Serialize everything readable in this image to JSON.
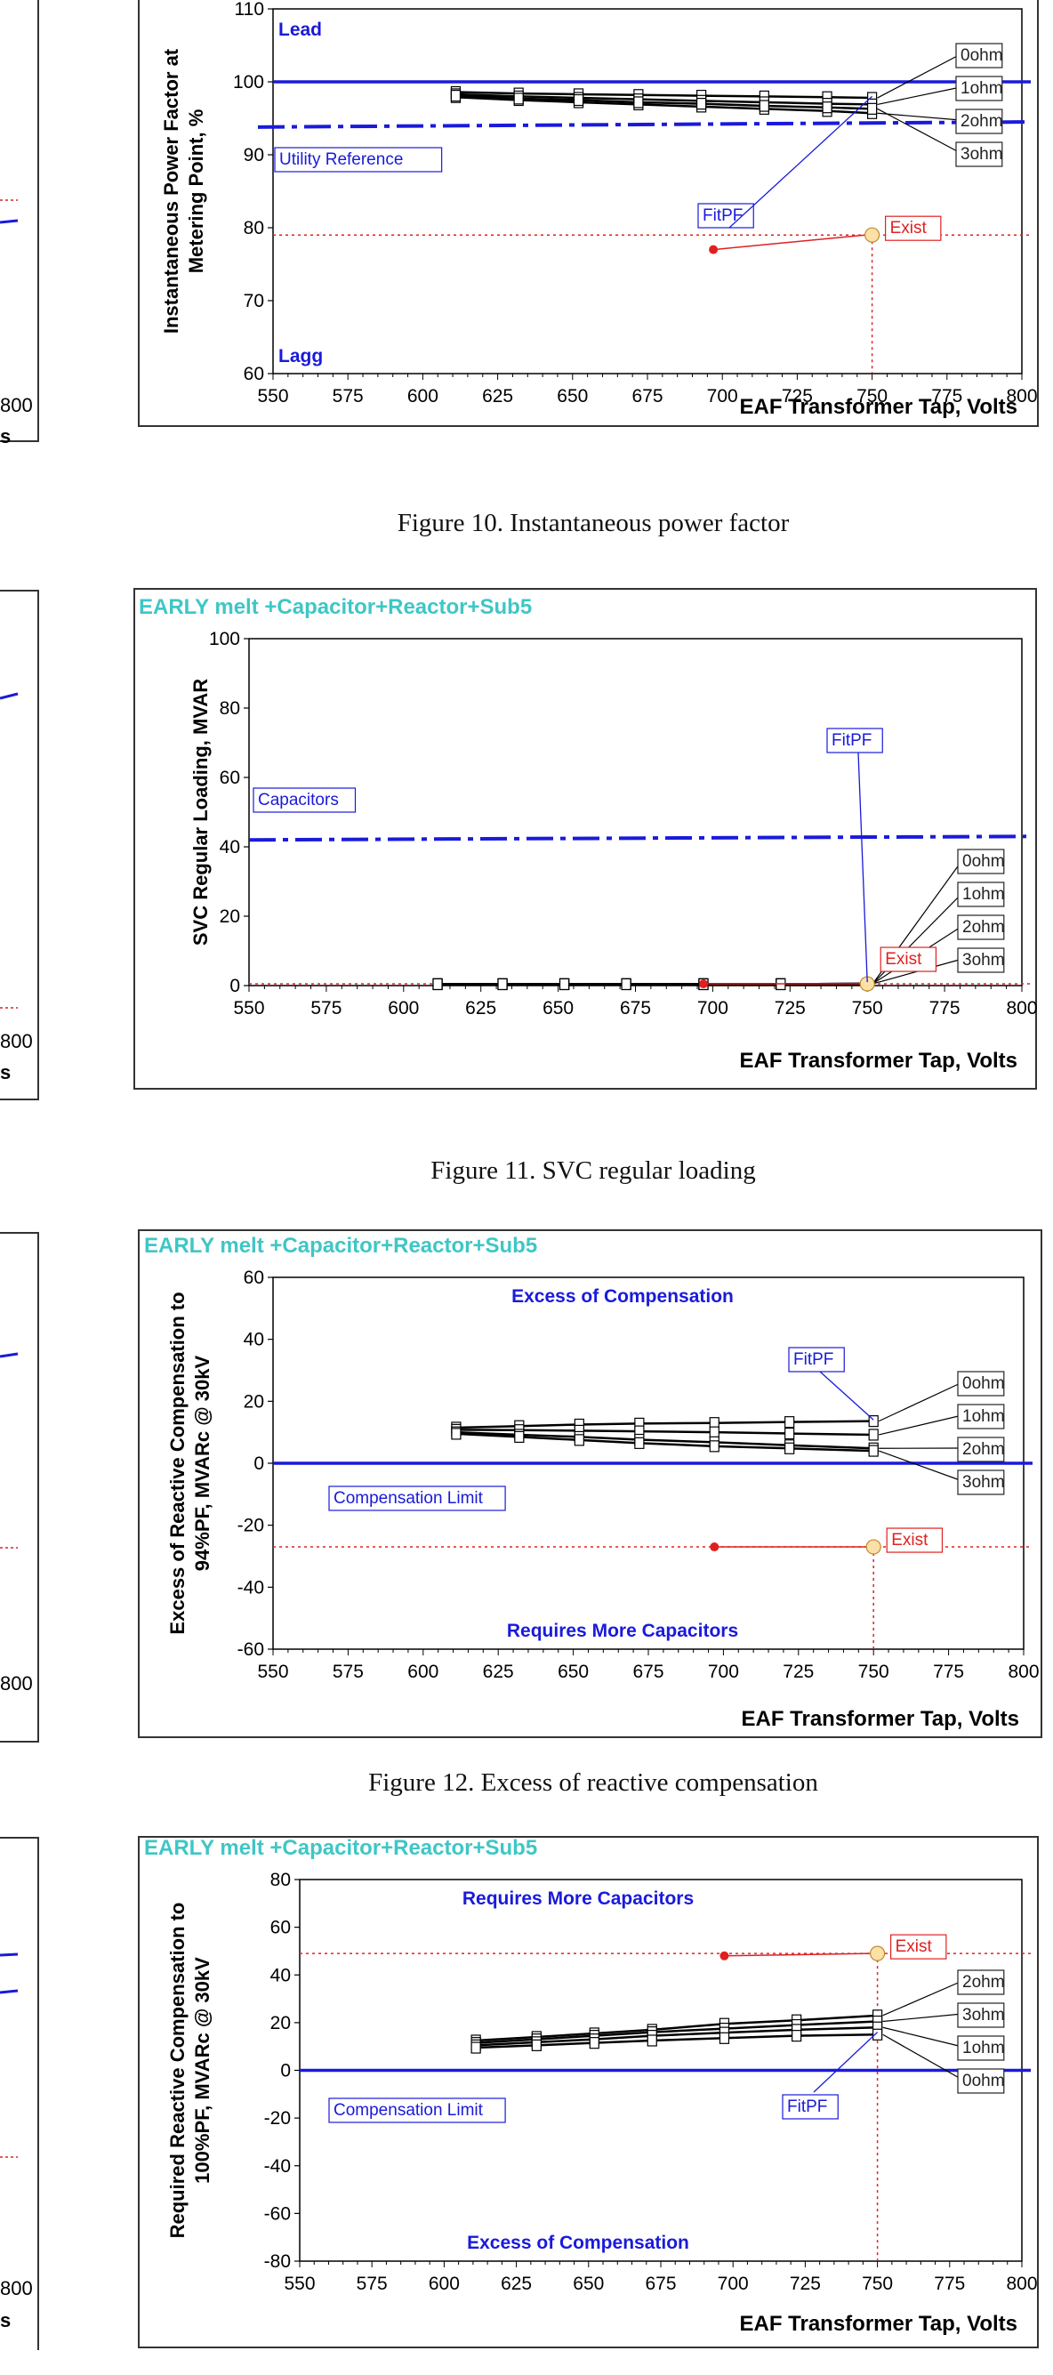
{
  "captions": [
    "Figure 10.  Instantaneous power factor",
    "Figure 11.  SVC regular loading",
    "Figure 12.  Excess of reactive compensation"
  ],
  "partial_left_labels": [
    "800",
    "s",
    "800",
    "s",
    "800",
    "800",
    "s"
  ],
  "colors": {
    "line": "#000000",
    "blue": "#1a1adb",
    "red": "#e02020",
    "teal": "#3fc6c6",
    "exist_fill": "#fbe1a8"
  },
  "chart_data": [
    {
      "type": "line",
      "title": "",
      "xlabel": "EAF Transformer Tap, Volts",
      "ylabel": [
        "Instantaneous Power Factor at",
        "Metering Point, %"
      ],
      "xlim": [
        550,
        800
      ],
      "ylim": [
        60,
        110
      ],
      "xticks": [
        550,
        575,
        600,
        625,
        650,
        675,
        700,
        725,
        750,
        775,
        800
      ],
      "yticks": [
        60,
        70,
        80,
        90,
        100,
        110
      ],
      "x": [
        611,
        632,
        652,
        672,
        693,
        714,
        735,
        750
      ],
      "series": [
        {
          "name": "0ohm",
          "values": [
            98.6,
            98.4,
            98.3,
            98.2,
            98.1,
            98.0,
            97.9,
            97.8
          ]
        },
        {
          "name": "1ohm",
          "values": [
            98.3,
            98.0,
            97.8,
            97.6,
            97.4,
            97.2,
            97.0,
            96.9
          ]
        },
        {
          "name": "2ohm",
          "values": [
            97.9,
            97.5,
            97.2,
            96.9,
            96.6,
            96.3,
            96.0,
            95.7
          ]
        },
        {
          "name": "3ohm",
          "values": [
            98.1,
            97.7,
            97.5,
            97.2,
            97.0,
            96.7,
            96.5,
            96.3
          ]
        }
      ],
      "ref_line": {
        "label": "Utility Reference",
        "value": 94,
        "y_left": 93.8,
        "y_right": 94.5
      },
      "limit_line": 100,
      "exist_line": 79,
      "exist_point": {
        "x": 750,
        "y": 79,
        "label": "Exist"
      },
      "red_point": {
        "x": 697,
        "y": 77
      },
      "fit_label": "FitPF",
      "annotations": {
        "top": "Lead",
        "bottom": "Lagg"
      }
    },
    {
      "type": "line",
      "title": "EARLY melt +Capacitor+Reactor+Sub5",
      "xlabel": "EAF Transformer Tap, Volts",
      "ylabel": [
        "SVC Regular Loading, MVAR"
      ],
      "xlim": [
        550,
        800
      ],
      "ylim": [
        0,
        100
      ],
      "xticks": [
        550,
        575,
        600,
        625,
        650,
        675,
        700,
        725,
        750,
        775,
        800
      ],
      "yticks": [
        0,
        20,
        40,
        60,
        80,
        100
      ],
      "x": [
        611,
        632,
        652,
        672,
        697,
        722,
        750
      ],
      "series": [
        {
          "name": "0ohm",
          "values": [
            0.4,
            0.4,
            0.4,
            0.4,
            0.4,
            0.4,
            0.5
          ]
        },
        {
          "name": "1ohm",
          "values": [
            0.4,
            0.4,
            0.4,
            0.4,
            0.4,
            0.4,
            0.5
          ]
        },
        {
          "name": "2ohm",
          "values": [
            0.4,
            0.4,
            0.4,
            0.4,
            0.4,
            0.4,
            0.5
          ]
        },
        {
          "name": "3ohm",
          "values": [
            0.4,
            0.4,
            0.4,
            0.4,
            0.4,
            0.4,
            0.5
          ]
        }
      ],
      "ref_line": {
        "label": "Capacitors",
        "value": 42,
        "y_left": 42,
        "y_right": 43
      },
      "exist_line": 0.5,
      "exist_point": {
        "x": 750,
        "y": 0.5,
        "label": "Exist"
      },
      "red_point": {
        "x": 697,
        "y": 0.5
      },
      "fit_label": "FitPF"
    },
    {
      "type": "line",
      "title": "EARLY melt +Capacitor+Reactor+Sub5",
      "xlabel": "EAF Transformer Tap, Volts",
      "ylabel": [
        "Excess of Reactive Compensation to",
        "94%PF, MVARc @ 30kV"
      ],
      "xlim": [
        550,
        800
      ],
      "ylim": [
        -60,
        60
      ],
      "xticks": [
        550,
        575,
        600,
        625,
        650,
        675,
        700,
        725,
        750,
        775,
        800
      ],
      "yticks": [
        -60,
        -40,
        -20,
        0,
        20,
        40,
        60
      ],
      "x": [
        611,
        632,
        652,
        672,
        697,
        722,
        750
      ],
      "series": [
        {
          "name": "0ohm",
          "values": [
            11.5,
            12.0,
            12.5,
            12.8,
            13.0,
            13.3,
            13.6
          ]
        },
        {
          "name": "1ohm",
          "values": [
            10.8,
            10.7,
            10.5,
            10.3,
            10.0,
            9.6,
            9.2
          ]
        },
        {
          "name": "2ohm",
          "values": [
            10.0,
            9.2,
            8.5,
            7.6,
            6.8,
            5.8,
            4.8
          ]
        },
        {
          "name": "3ohm",
          "values": [
            9.5,
            8.5,
            7.5,
            6.5,
            5.5,
            4.8,
            4.0
          ]
        }
      ],
      "ref_line": {
        "label": "Compensation Limit",
        "value": 0
      },
      "exist_line": -27,
      "exist_point": {
        "x": 750,
        "y": -27,
        "label": "Exist"
      },
      "red_point": {
        "x": 697,
        "y": -27
      },
      "fit_label": "FitPF",
      "annotations": {
        "top": "Excess of Compensation",
        "bottom": "Requires More Capacitors"
      }
    },
    {
      "type": "line",
      "title": "EARLY melt +Capacitor+Reactor+Sub5",
      "xlabel": "EAF Transformer Tap, Volts",
      "ylabel": [
        "Required Reactive Compensation to",
        "100%PF, MVARc @ 30kV"
      ],
      "xlim": [
        550,
        800
      ],
      "ylim": [
        -80,
        80
      ],
      "xticks": [
        550,
        575,
        600,
        625,
        650,
        675,
        700,
        725,
        750,
        775,
        800
      ],
      "yticks": [
        -80,
        -60,
        -40,
        -20,
        0,
        20,
        40,
        60,
        80
      ],
      "x": [
        611,
        632,
        652,
        672,
        697,
        722,
        750
      ],
      "series": [
        {
          "name": "2ohm",
          "values": [
            12.5,
            14.0,
            15.5,
            17.0,
            19.5,
            21.0,
            23.0
          ]
        },
        {
          "name": "3ohm",
          "values": [
            11.5,
            13.0,
            14.5,
            16.0,
            17.5,
            19.0,
            20.5
          ]
        },
        {
          "name": "1ohm",
          "values": [
            10.5,
            11.8,
            13.0,
            14.5,
            15.8,
            17.0,
            18.0
          ]
        },
        {
          "name": "0ohm",
          "values": [
            9.5,
            10.5,
            11.5,
            12.5,
            13.5,
            14.5,
            15.0
          ]
        }
      ],
      "ref_line": {
        "label": "Compensation Limit",
        "value": 0
      },
      "exist_line": 49,
      "exist_point": {
        "x": 750,
        "y": 49,
        "label": "Exist"
      },
      "red_point": {
        "x": 697,
        "y": 48
      },
      "fit_label": "FitPF",
      "annotations": {
        "top": "Requires More Capacitors",
        "bottom": "Excess of Compensation"
      }
    }
  ]
}
